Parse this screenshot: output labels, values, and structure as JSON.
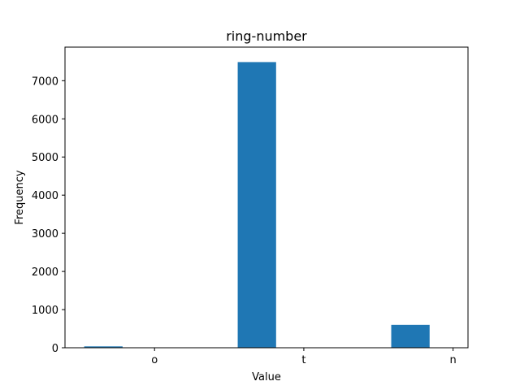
{
  "chart_data": {
    "type": "bar",
    "title": "ring-number",
    "xlabel": "Value",
    "ylabel": "Frequency",
    "color": "#1f77b4",
    "x_tick_labels": [
      "o",
      "t",
      "n"
    ],
    "y_ticks": [
      0,
      1000,
      2000,
      3000,
      4000,
      5000,
      6000,
      7000
    ],
    "ylim": [
      0,
      7880
    ],
    "bars": [
      {
        "category": "n",
        "value": 36
      },
      {
        "category": "o",
        "value": 7488
      },
      {
        "category": "t",
        "value": 600
      }
    ],
    "grid": false,
    "legend": "none"
  }
}
